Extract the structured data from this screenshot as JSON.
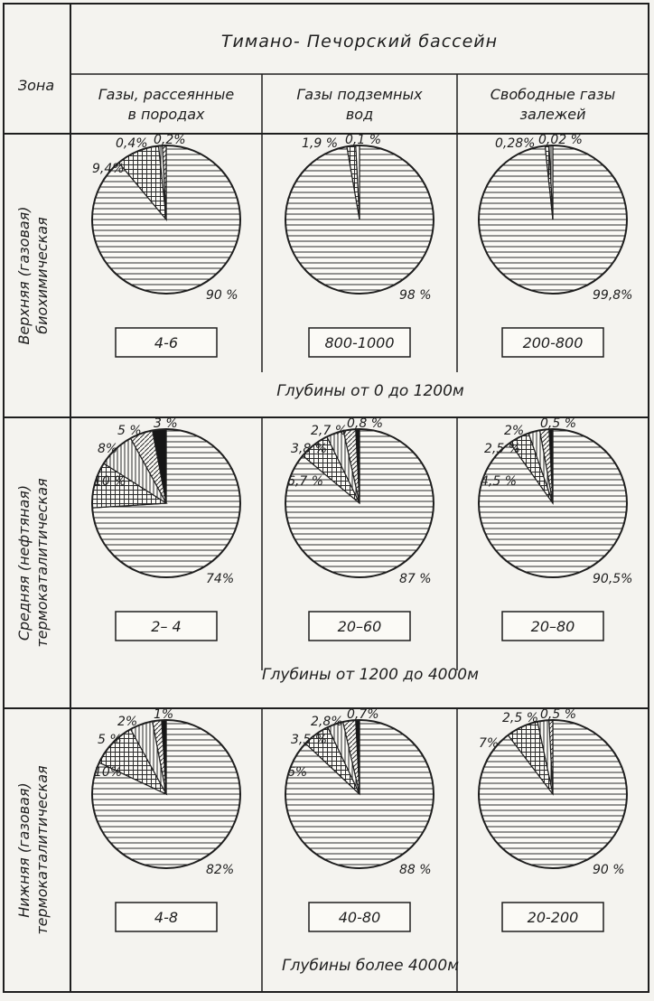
{
  "header": {
    "basin": "Тимано- Печорский   бассейн",
    "zone_col": "Зона",
    "columns": [
      [
        "Газы, рассеянные",
        "в породах"
      ],
      [
        "Газы подземных",
        "вод"
      ],
      [
        "Свободные  газы",
        "залежей"
      ]
    ]
  },
  "chart_data": {
    "type": "pie",
    "title": "Тимано- Печорский   бассейн",
    "pattern_order": [
      "horizontal",
      "cross",
      "vertical",
      "diagonal",
      "solid"
    ],
    "rows": [
      {
        "zone": [
          "Верхняя  (газовая)",
          "биохимическая"
        ],
        "depth": "Глубины от 0 до 1200м",
        "cells": [
          {
            "value_range": "4-6",
            "slices": [
              90,
              9.4,
              0.4,
              0.2
            ],
            "labels": [
              "90 %",
              "9,4%",
              "0,4%",
              "0,2%"
            ]
          },
          {
            "value_range": "800-1000",
            "slices": [
              98,
              1.9,
              0.1
            ],
            "labels": [
              "98 %",
              "1,9 %",
              "0,1 %"
            ]
          },
          {
            "value_range": "200-800",
            "slices": [
              99.8,
              0.28,
              0.02
            ],
            "labels": [
              "99,8%",
              "0,28%",
              "0,02 %"
            ]
          }
        ]
      },
      {
        "zone": [
          "Средняя  (нефтяная)",
          "термокаталитическая"
        ],
        "depth": "Глубины от 1200 до 4000м",
        "cells": [
          {
            "value_range": "2– 4",
            "slices": [
              74,
              10,
              8,
              5,
              3
            ],
            "labels": [
              "74%",
              "10 %",
              "8%",
              "5 %",
              "3 %"
            ]
          },
          {
            "value_range": "20–60",
            "slices": [
              87,
              6.7,
              3.8,
              2.7,
              0.8
            ],
            "labels": [
              "87 %",
              "6,7 %",
              "3,8 %",
              "2,7 %",
              "0,8 %"
            ]
          },
          {
            "value_range": "20–80",
            "slices": [
              90.5,
              4.5,
              2.5,
              2,
              0.5
            ],
            "labels": [
              "90,5%",
              "4,5 %",
              "2,5 %",
              "2%",
              "0,5 %"
            ]
          }
        ]
      },
      {
        "zone": [
          "Нижняя  (газовая)",
          "термокаталитическая"
        ],
        "depth": "Глубины более 4000м",
        "cells": [
          {
            "value_range": "4-8",
            "slices": [
              82,
              10,
              5,
              2,
              1
            ],
            "labels": [
              "82%",
              "10%",
              "5 %",
              "2%",
              "1%"
            ]
          },
          {
            "value_range": "40-80",
            "slices": [
              88,
              6,
              3.5,
              2.8,
              0.7
            ],
            "labels": [
              "88 %",
              "6%",
              "3,5 %",
              "2,8%",
              "0,7%"
            ]
          },
          {
            "value_range": "20-200",
            "slices": [
              90,
              7,
              2.5,
              0.5
            ],
            "labels": [
              "90 %",
              "7%",
              "2,5 %",
              "0,5 %"
            ]
          }
        ]
      }
    ]
  }
}
